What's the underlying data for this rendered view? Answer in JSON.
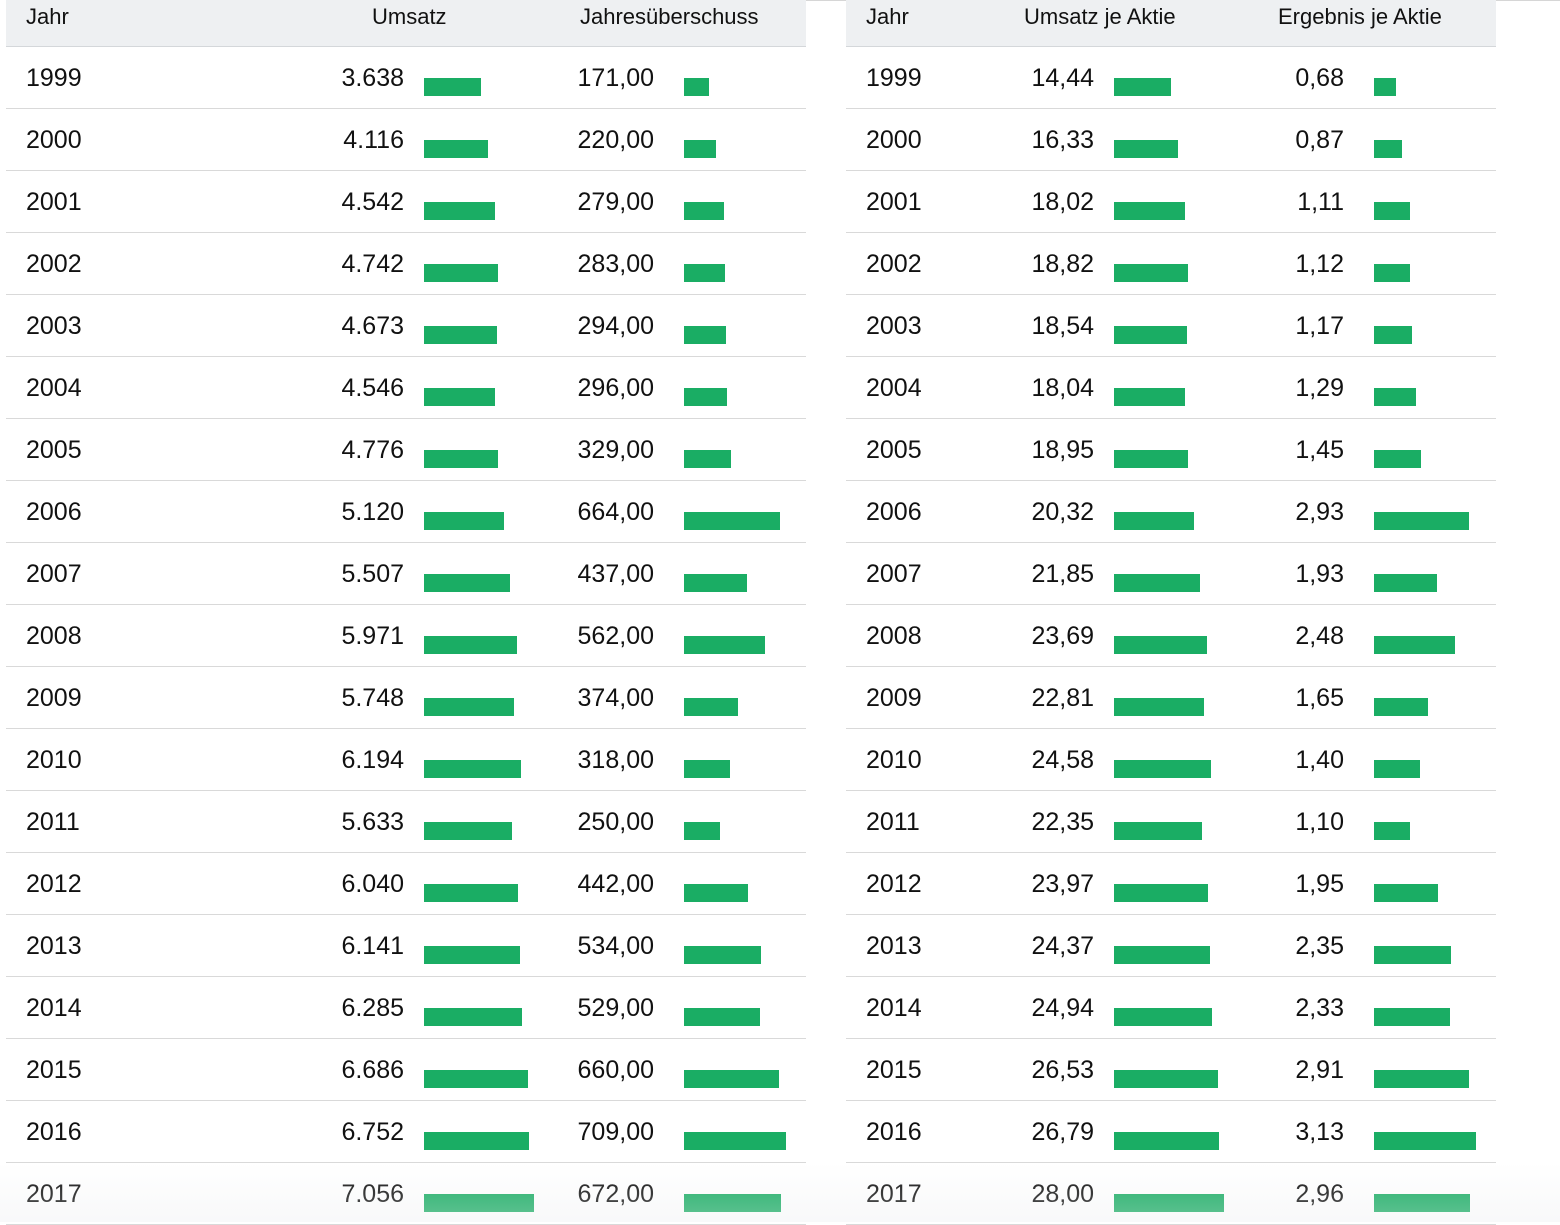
{
  "bar_color": "#1aad64",
  "left_table": {
    "headers": {
      "year": "Jahr",
      "col1": "Umsatz",
      "col2": "Jahresüberschuss"
    },
    "rows": [
      {
        "year": "1999",
        "col1": "3.638",
        "col1_value": 3638,
        "col2": "171,00",
        "col2_value": 171
      },
      {
        "year": "2000",
        "col1": "4.116",
        "col1_value": 4116,
        "col2": "220,00",
        "col2_value": 220
      },
      {
        "year": "2001",
        "col1": "4.542",
        "col1_value": 4542,
        "col2": "279,00",
        "col2_value": 279
      },
      {
        "year": "2002",
        "col1": "4.742",
        "col1_value": 4742,
        "col2": "283,00",
        "col2_value": 283
      },
      {
        "year": "2003",
        "col1": "4.673",
        "col1_value": 4673,
        "col2": "294,00",
        "col2_value": 294
      },
      {
        "year": "2004",
        "col1": "4.546",
        "col1_value": 4546,
        "col2": "296,00",
        "col2_value": 296
      },
      {
        "year": "2005",
        "col1": "4.776",
        "col1_value": 4776,
        "col2": "329,00",
        "col2_value": 329
      },
      {
        "year": "2006",
        "col1": "5.120",
        "col1_value": 5120,
        "col2": "664,00",
        "col2_value": 664
      },
      {
        "year": "2007",
        "col1": "5.507",
        "col1_value": 5507,
        "col2": "437,00",
        "col2_value": 437
      },
      {
        "year": "2008",
        "col1": "5.971",
        "col1_value": 5971,
        "col2": "562,00",
        "col2_value": 562
      },
      {
        "year": "2009",
        "col1": "5.748",
        "col1_value": 5748,
        "col2": "374,00",
        "col2_value": 374
      },
      {
        "year": "2010",
        "col1": "6.194",
        "col1_value": 6194,
        "col2": "318,00",
        "col2_value": 318
      },
      {
        "year": "2011",
        "col1": "5.633",
        "col1_value": 5633,
        "col2": "250,00",
        "col2_value": 250
      },
      {
        "year": "2012",
        "col1": "6.040",
        "col1_value": 6040,
        "col2": "442,00",
        "col2_value": 442
      },
      {
        "year": "2013",
        "col1": "6.141",
        "col1_value": 6141,
        "col2": "534,00",
        "col2_value": 534
      },
      {
        "year": "2014",
        "col1": "6.285",
        "col1_value": 6285,
        "col2": "529,00",
        "col2_value": 529
      },
      {
        "year": "2015",
        "col1": "6.686",
        "col1_value": 6686,
        "col2": "660,00",
        "col2_value": 660
      },
      {
        "year": "2016",
        "col1": "6.752",
        "col1_value": 6752,
        "col2": "709,00",
        "col2_value": 709
      },
      {
        "year": "2017",
        "col1": "7.056",
        "col1_value": 7056,
        "col2": "672,00",
        "col2_value": 672
      }
    ]
  },
  "right_table": {
    "headers": {
      "year": "Jahr",
      "col1": "Umsatz je Aktie",
      "col2": "Ergebnis je Aktie"
    },
    "rows": [
      {
        "year": "1999",
        "col1": "14,44",
        "col1_value": 14.44,
        "col2": "0,68",
        "col2_value": 0.68
      },
      {
        "year": "2000",
        "col1": "16,33",
        "col1_value": 16.33,
        "col2": "0,87",
        "col2_value": 0.87
      },
      {
        "year": "2001",
        "col1": "18,02",
        "col1_value": 18.02,
        "col2": "1,11",
        "col2_value": 1.11
      },
      {
        "year": "2002",
        "col1": "18,82",
        "col1_value": 18.82,
        "col2": "1,12",
        "col2_value": 1.12
      },
      {
        "year": "2003",
        "col1": "18,54",
        "col1_value": 18.54,
        "col2": "1,17",
        "col2_value": 1.17
      },
      {
        "year": "2004",
        "col1": "18,04",
        "col1_value": 18.04,
        "col2": "1,29",
        "col2_value": 1.29
      },
      {
        "year": "2005",
        "col1": "18,95",
        "col1_value": 18.95,
        "col2": "1,45",
        "col2_value": 1.45
      },
      {
        "year": "2006",
        "col1": "20,32",
        "col1_value": 20.32,
        "col2": "2,93",
        "col2_value": 2.93
      },
      {
        "year": "2007",
        "col1": "21,85",
        "col1_value": 21.85,
        "col2": "1,93",
        "col2_value": 1.93
      },
      {
        "year": "2008",
        "col1": "23,69",
        "col1_value": 23.69,
        "col2": "2,48",
        "col2_value": 2.48
      },
      {
        "year": "2009",
        "col1": "22,81",
        "col1_value": 22.81,
        "col2": "1,65",
        "col2_value": 1.65
      },
      {
        "year": "2010",
        "col1": "24,58",
        "col1_value": 24.58,
        "col2": "1,40",
        "col2_value": 1.4
      },
      {
        "year": "2011",
        "col1": "22,35",
        "col1_value": 22.35,
        "col2": "1,10",
        "col2_value": 1.1
      },
      {
        "year": "2012",
        "col1": "23,97",
        "col1_value": 23.97,
        "col2": "1,95",
        "col2_value": 1.95
      },
      {
        "year": "2013",
        "col1": "24,37",
        "col1_value": 24.37,
        "col2": "2,35",
        "col2_value": 2.35
      },
      {
        "year": "2014",
        "col1": "24,94",
        "col1_value": 24.94,
        "col2": "2,33",
        "col2_value": 2.33
      },
      {
        "year": "2015",
        "col1": "26,53",
        "col1_value": 26.53,
        "col2": "2,91",
        "col2_value": 2.91
      },
      {
        "year": "2016",
        "col1": "26,79",
        "col1_value": 26.79,
        "col2": "3,13",
        "col2_value": 3.13
      },
      {
        "year": "2017",
        "col1": "28,00",
        "col1_value": 28.0,
        "col2": "2,96",
        "col2_value": 2.96
      }
    ]
  }
}
